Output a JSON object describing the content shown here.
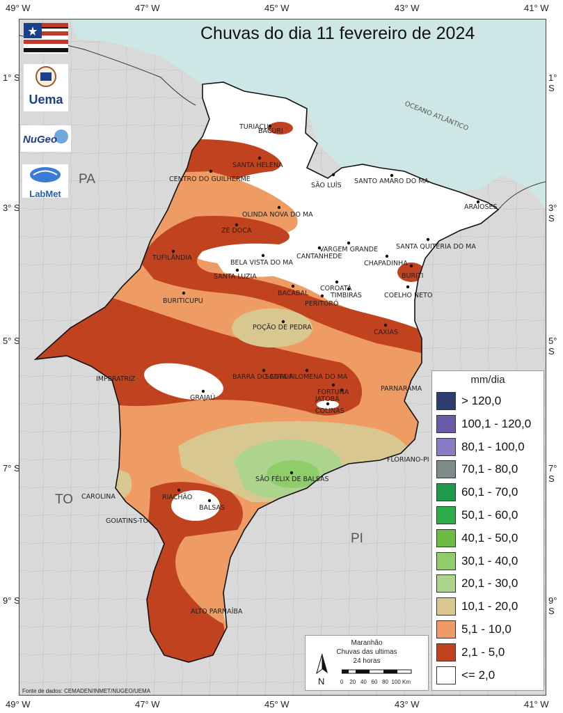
{
  "title": "Chuvas do dia 11 fevereiro de 2024",
  "axes": {
    "top_longitudes": [
      "49° W",
      "47° W",
      "45° W",
      "43° W",
      "41° W"
    ],
    "bottom_longitudes": [
      "49° W",
      "47° W",
      "45° W",
      "43° W",
      "41° W"
    ],
    "left_latitudes": [
      "1° S",
      "3° S",
      "5° S",
      "7° S",
      "9° S"
    ],
    "right_latitudes": [
      "1° S",
      "3° S",
      "5° S",
      "7° S",
      "9° S"
    ]
  },
  "regions": {
    "ocean": "OCEANO ATLÂNTICO",
    "pa": "PA",
    "to": "TO",
    "pi": "PI"
  },
  "cities": [
    "TURIAÇU",
    "BACURI",
    "SANTA HELENA",
    "CENTRO DO GUILHERME",
    "SÃO LUÍS",
    "SANTO AMARO DO MA",
    "ARAIOSES",
    "OLINDA NOVA DO MA",
    "ZÉ DOCA",
    "VARGEM GRANDE",
    "CANTANHEDE",
    "SANTA QUITÉRIA DO MA",
    "TUFILÂNDIA",
    "BELA VISTA DO MA",
    "CHAPADINHA",
    "SANTA LUZIA",
    "BURITI",
    "BACABAL",
    "COROATÁ",
    "TIMBIRAS",
    "PERITORÓ",
    "COELHO NETO",
    "BURITICUPU",
    "POÇÃO DE PEDRA",
    "CAXIAS",
    "BARRA DO CORDA",
    "SANTA FILOMENA DO MA",
    "IMPERATRIZ",
    "GRAJAÚ",
    "FORTUNA",
    "JATOBÁ",
    "PARNARAMA",
    "COLINAS",
    "FLORIANO-PI",
    "SÃO FÉLIX DE BALSAS",
    "CAROLINA",
    "RIACHÃO",
    "BALSAS",
    "GOIATINS-TO",
    "ALTO PARNAÍBA"
  ],
  "legend": {
    "title": "mm/dia",
    "classes": [
      {
        "label": "> 120,0",
        "color": "#2c3d6e"
      },
      {
        "label": "100,1 - 120,0",
        "color": "#6a5aa8"
      },
      {
        "label": "80,1 - 100,0",
        "color": "#8a7bc4"
      },
      {
        "label": "70,1 - 80,0",
        "color": "#7c8c8a"
      },
      {
        "label": "60,1 - 70,0",
        "color": "#1f9a4a"
      },
      {
        "label": "50,1 - 60,0",
        "color": "#2eae4b"
      },
      {
        "label": "40,1 - 50,0",
        "color": "#6cbb45"
      },
      {
        "label": "30,1 - 40,0",
        "color": "#8fcc6a"
      },
      {
        "label": "20,1 - 30,0",
        "color": "#acd48c"
      },
      {
        "label": "10,1 - 20,0",
        "color": "#d8c78e"
      },
      {
        "label": "5,1 - 10,0",
        "color": "#ee9c63"
      },
      {
        "label": "2,1 - 5,0",
        "color": "#c0421e"
      },
      {
        "label": "<= 2,0",
        "color": "#ffffff"
      }
    ]
  },
  "scalebox": {
    "line1": "Maranhão",
    "line2": "Chuvas das ultimas",
    "line3": "24 horas",
    "north": "N",
    "ticks": [
      "0",
      "20",
      "40",
      "60",
      "80",
      "100 Km"
    ]
  },
  "logos": {
    "uema": "Uema",
    "nugeo": "NuGeo",
    "labmet": "LabMet"
  },
  "source": "Fonte de dados: CEMADEN/INMET/NUGEO/UEMA"
}
